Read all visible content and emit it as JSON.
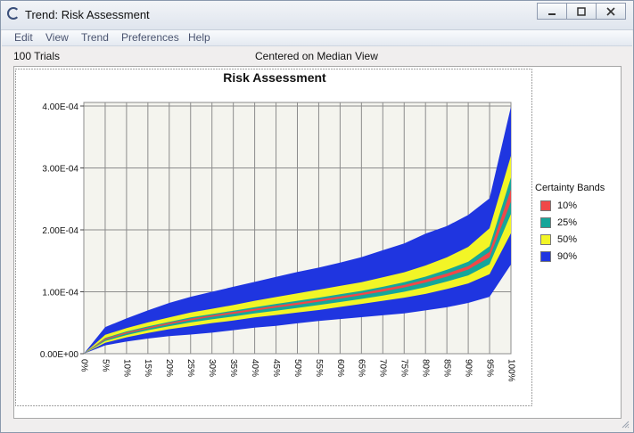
{
  "window": {
    "title": "Trend: Risk Assessment",
    "controls": [
      "minimize-icon",
      "restore-icon",
      "close-icon"
    ]
  },
  "menu": [
    "Edit",
    "View",
    "Trend",
    "Preferences",
    "Help"
  ],
  "info": {
    "trials": "100 Trials",
    "view": "Centered on Median View"
  },
  "colors": {
    "band_90": "#1f35e0",
    "band_50": "#f2f526",
    "band_25": "#16a69a",
    "band_10": "#f04848",
    "plot_bg": "#f4f4ee"
  },
  "chart_data": {
    "type": "area",
    "title": "Risk Assessment",
    "x": [
      "0%",
      "5%",
      "10%",
      "15%",
      "20%",
      "25%",
      "30%",
      "35%",
      "40%",
      "45%",
      "50%",
      "55%",
      "60%",
      "65%",
      "70%",
      "75%",
      "80%",
      "85%",
      "90%",
      "95%",
      "100%"
    ],
    "ylim": [
      0,
      0.0004
    ],
    "yticks": [
      0,
      0.0001,
      0.0002,
      0.0003,
      0.0004
    ],
    "ytick_labels": [
      "0.00E+00",
      "1.00E-04",
      "2.00E-04",
      "3.00E-04",
      "4.00E-04"
    ],
    "grid": true,
    "legend": {
      "title": "Certainty Bands",
      "placement": "right",
      "items": [
        "10%",
        "25%",
        "50%",
        "90%"
      ]
    },
    "bands": [
      {
        "name": "90%",
        "color": "#1f35e0",
        "lower": [
          0.0,
          1.35e-05,
          1.95e-05,
          2.45e-05,
          2.85e-05,
          3.1e-05,
          3.4e-05,
          3.8e-05,
          4.2e-05,
          4.5e-05,
          4.9e-05,
          5.3e-05,
          5.6e-05,
          5.9e-05,
          6.2e-05,
          6.5e-05,
          7e-05,
          7.5e-05,
          8.2e-05,
          9.2e-05,
          0.000144
        ],
        "upper": [
          0.0,
          4.3e-05,
          5.7e-05,
          7e-05,
          8.2e-05,
          9.2e-05,
          0.0001,
          0.000108,
          0.000116,
          0.000124,
          0.000132,
          0.000139,
          0.000147,
          0.000156,
          0.000167,
          0.000178,
          0.000194,
          0.000206,
          0.000224,
          0.000251,
          0.000399
        ]
      },
      {
        "name": "50%",
        "color": "#f2f526",
        "lower": [
          0.0,
          1.75e-05,
          2.65e-05,
          3.35e-05,
          3.95e-05,
          4.45e-05,
          4.95e-05,
          5.35e-05,
          5.85e-05,
          6.25e-05,
          6.65e-05,
          7.05e-05,
          7.55e-05,
          8.05e-05,
          8.55e-05,
          9.05e-05,
          9.65e-05,
          0.0001045,
          0.0001135,
          0.0001285,
          0.0001945
        ],
        "upper": [
          0.0,
          3.05e-05,
          4.15e-05,
          5.05e-05,
          5.85e-05,
          6.65e-05,
          7.25e-05,
          7.85e-05,
          8.55e-05,
          9.15e-05,
          9.75e-05,
          0.0001035,
          0.0001095,
          0.0001155,
          0.0001235,
          0.0001315,
          0.0001425,
          0.0001555,
          0.0001725,
          0.0002025,
          0.0003195
        ]
      },
      {
        "name": "25%",
        "color": "#16a69a",
        "lower": [
          0.0,
          2.05e-05,
          3e-05,
          3.8e-05,
          4.45e-05,
          5.05e-05,
          5.55e-05,
          6e-05,
          6.5e-05,
          6.95e-05,
          7.4e-05,
          7.85e-05,
          8.35e-05,
          8.85e-05,
          9.4e-05,
          0.0001,
          0.0001075,
          0.0001165,
          0.0001265,
          0.0001445,
          0.0002255
        ],
        "upper": [
          0.0,
          2.55e-05,
          3.6e-05,
          4.4e-05,
          5.15e-05,
          5.85e-05,
          6.4e-05,
          6.95e-05,
          7.5e-05,
          8.05e-05,
          8.55e-05,
          9.05e-05,
          9.6e-05,
          0.0001015,
          0.000108,
          0.0001155,
          0.0001245,
          0.0001355,
          0.0001485,
          0.0001735,
          0.0002845
        ]
      },
      {
        "name": "10%",
        "color": "#f04848",
        "lower": [
          0.0,
          2.25e-05,
          3.25e-05,
          4.05e-05,
          4.75e-05,
          5.4e-05,
          5.95e-05,
          6.45e-05,
          6.95e-05,
          7.45e-05,
          7.9e-05,
          8.4e-05,
          8.9e-05,
          9.45e-05,
          0.0001005,
          0.000107,
          0.000115,
          0.0001245,
          0.000136,
          0.0001555,
          0.0002455
        ],
        "upper": [
          0.0,
          2.45e-05,
          3.45e-05,
          4.25e-05,
          5e-05,
          5.65e-05,
          6.2e-05,
          6.75e-05,
          7.25e-05,
          7.75e-05,
          8.25e-05,
          8.75e-05,
          9.25e-05,
          9.8e-05,
          0.0001045,
          0.000111,
          0.0001195,
          0.0001295,
          0.0001415,
          0.0001645,
          0.0002655
        ]
      }
    ]
  }
}
